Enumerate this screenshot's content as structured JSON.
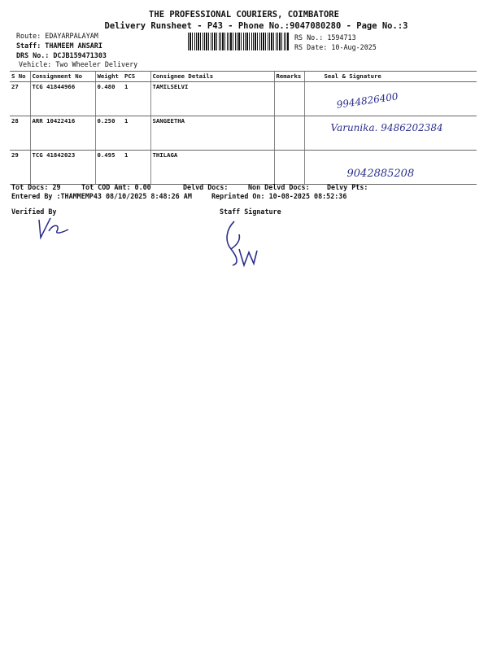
{
  "header": {
    "company": "THE PROFESSIONAL COURIERS, COIMBATORE",
    "subtitle": "Delivery Runsheet - P43 - Phone No.:9047080280 - Page No.:3",
    "route": "Route: EDAYARPALAYAM",
    "staff": "Staff: THAMEEM ANSARI",
    "drs": "DRS No.: DCJB159471303",
    "vehicle": "Vehicle: Two Wheeler Delivery",
    "rs_no": "RS No.: 1594713",
    "rs_date": "RS Date: 10-Aug-2025"
  },
  "table": {
    "columns": [
      "S No",
      "Consignment No",
      "Weight",
      "PCS",
      "Consignee Details",
      "Remarks",
      "Seal & Signature"
    ],
    "rows": [
      {
        "sno": "27",
        "consignment": "TCG 41844966",
        "weight": "0.480",
        "pcs": "1",
        "consignee": "TAMILSELVI",
        "remarks": "",
        "signature": "9944826400"
      },
      {
        "sno": "28",
        "consignment": "ARR 10422416",
        "weight": "0.250",
        "pcs": "1",
        "consignee": "SANGEETHA",
        "remarks": "",
        "signature": "Varunika. 9486202384"
      },
      {
        "sno": "29",
        "consignment": "TCG 41842023",
        "weight": "0.495",
        "pcs": "1",
        "consignee": "THILAGA",
        "remarks": "",
        "signature": "9042885208"
      }
    ]
  },
  "footer": {
    "tot_docs": "Tot Docs:  29",
    "tot_cod": "Tot COD Amt:    0.00",
    "delvd": "Delvd Docs:",
    "non_delvd": "Non Delvd Docs:",
    "delvy_pts": "Delvy Pts:",
    "entered": "Entered By :THAMMEMP43 08/10/2025 8:48:26 AM",
    "reprinted": "Reprinted On: 10-08-2025 08:52:36",
    "verified_by": "Verified By",
    "staff_signature": "Staff Signature"
  }
}
